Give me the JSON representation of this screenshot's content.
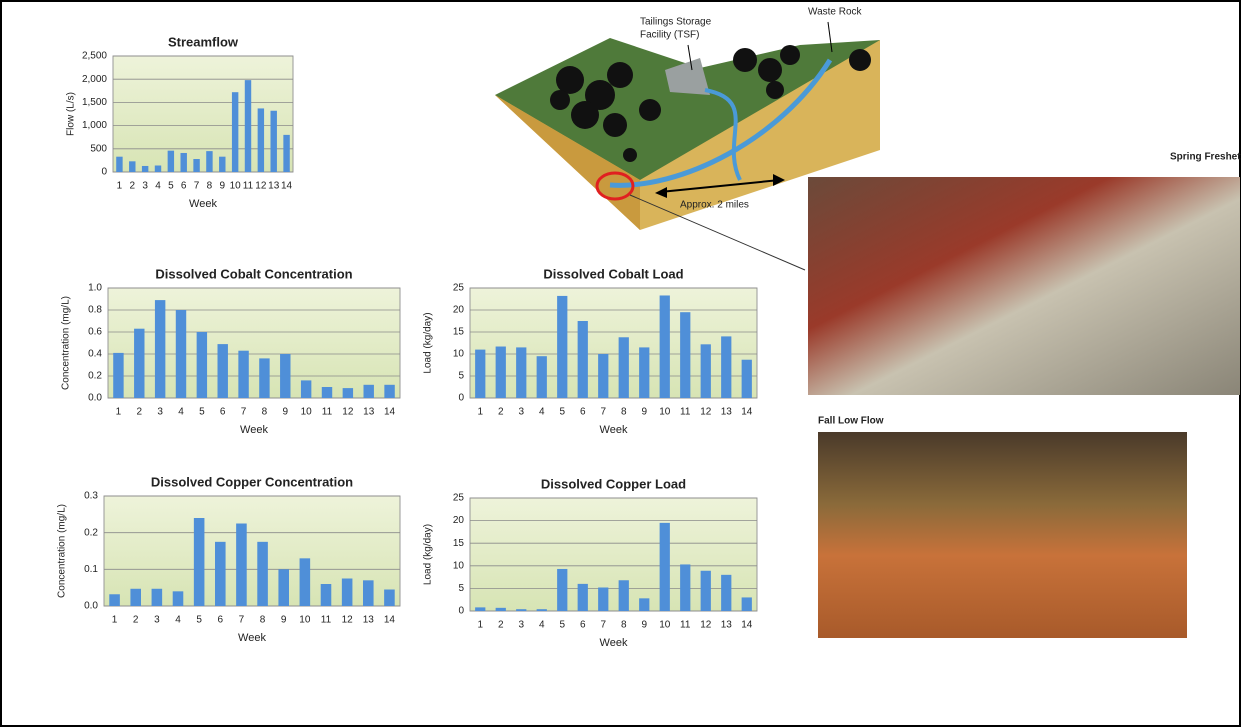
{
  "chart_data": [
    {
      "type": "bar",
      "title": "Streamflow",
      "xlabel": "Week",
      "ylabel": "Flow (L/s)",
      "color": "#4f8fd8",
      "grid": true,
      "categories": [
        "1",
        "2",
        "3",
        "4",
        "5",
        "6",
        "7",
        "8",
        "9",
        "10",
        "11",
        "12",
        "13",
        "14"
      ],
      "values": [
        330,
        230,
        130,
        140,
        460,
        410,
        280,
        450,
        330,
        1720,
        1980,
        1370,
        1320,
        800
      ],
      "ylim": [
        0,
        2500
      ],
      "yticks": [
        0,
        500,
        {
          "value": 1000,
          "label": "1,000"
        },
        {
          "value": 1500,
          "label": "1,500"
        },
        {
          "value": 2000,
          "label": "2,000"
        },
        {
          "value": 2500,
          "label": "2,500"
        }
      ]
    },
    {
      "type": "bar",
      "title": "Dissolved Cobalt Concentration",
      "xlabel": "Week",
      "ylabel": "Concentration (mg/L)",
      "color": "#4f8fd8",
      "grid": true,
      "categories": [
        "1",
        "2",
        "3",
        "4",
        "5",
        "6",
        "7",
        "8",
        "9",
        "10",
        "11",
        "12",
        "13",
        "14"
      ],
      "values": [
        0.41,
        0.63,
        0.89,
        0.8,
        0.6,
        0.49,
        0.43,
        0.36,
        0.4,
        0.16,
        0.1,
        0.09,
        0.12,
        0.12
      ],
      "ylim": [
        0,
        1
      ],
      "yticks": [
        {
          "value": 0,
          "label": "0.0"
        },
        0.2,
        0.4,
        0.6,
        0.8,
        {
          "value": 1,
          "label": "1.0"
        }
      ]
    },
    {
      "type": "bar",
      "title": "Dissolved Cobalt Load",
      "xlabel": "Week",
      "ylabel": "Load (kg/day)",
      "color": "#4f8fd8",
      "grid": true,
      "categories": [
        "1",
        "2",
        "3",
        "4",
        "5",
        "6",
        "7",
        "8",
        "9",
        "10",
        "11",
        "12",
        "13",
        "14"
      ],
      "values": [
        11,
        11.7,
        11.5,
        9.5,
        23.2,
        17.5,
        10,
        13.8,
        11.5,
        23.3,
        19.5,
        12.2,
        14,
        8.7
      ],
      "ylim": [
        0,
        25
      ],
      "yticks": [
        0,
        5,
        10,
        15,
        20,
        25
      ]
    },
    {
      "type": "bar",
      "title": "Dissolved Copper Concentration",
      "xlabel": "Week",
      "ylabel": "Concentration (mg/L)",
      "color": "#4f8fd8",
      "grid": true,
      "categories": [
        "1",
        "2",
        "3",
        "4",
        "5",
        "6",
        "7",
        "8",
        "9",
        "10",
        "11",
        "12",
        "13",
        "14"
      ],
      "values": [
        0.032,
        0.047,
        0.047,
        0.04,
        0.24,
        0.175,
        0.225,
        0.175,
        0.1,
        0.13,
        0.06,
        0.075,
        0.07,
        0.045
      ],
      "ylim": [
        0,
        0.3
      ],
      "yticks": [
        {
          "value": 0,
          "label": "0.0"
        },
        0.1,
        0.2,
        0.3
      ]
    },
    {
      "type": "bar",
      "title": "Dissolved Copper Load",
      "xlabel": "Week",
      "ylabel": "Load (kg/day)",
      "color": "#4f8fd8",
      "grid": true,
      "categories": [
        "1",
        "2",
        "3",
        "4",
        "5",
        "6",
        "7",
        "8",
        "9",
        "10",
        "11",
        "12",
        "13",
        "14"
      ],
      "values": [
        0.8,
        0.7,
        0.4,
        0.4,
        9.3,
        6,
        5.2,
        6.8,
        2.8,
        19.5,
        10.3,
        8.9,
        8,
        3
      ],
      "ylim": [
        0,
        25
      ],
      "yticks": [
        0,
        5,
        10,
        15,
        20,
        25
      ]
    }
  ],
  "diagram": {
    "tsf_label": [
      "Tailings Storage",
      "Facility (TSF)"
    ],
    "waste_rock_label": "Waste Rock",
    "distance_label": "Approx. 2 miles"
  },
  "photos": {
    "spring_caption": "Spring Freshet",
    "fall_caption": "Fall Low Flow"
  }
}
